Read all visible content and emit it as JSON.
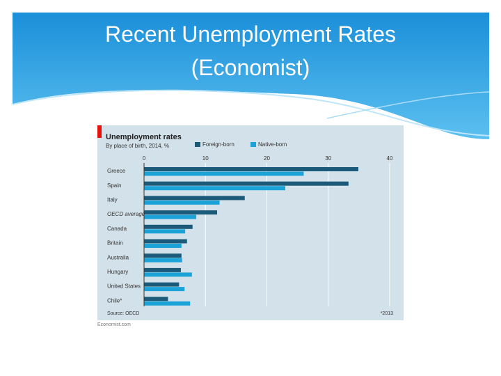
{
  "slide": {
    "title": "Recent Unemployment Rates (Economist)"
  },
  "chart_data": {
    "type": "bar",
    "orientation": "horizontal",
    "title": "Unemployment rates",
    "subtitle": "By place of birth, 2014, %",
    "categories": [
      "Greece",
      "Spain",
      "Italy",
      "OECD average",
      "Canada",
      "Britain",
      "Australia",
      "Hungary",
      "United States",
      "Chile*"
    ],
    "series": [
      {
        "name": "Foreign-born",
        "color": "#1b5b79",
        "values": [
          34.9,
          33.3,
          16.4,
          11.9,
          7.9,
          7.0,
          6.1,
          6.0,
          5.7,
          3.9
        ]
      },
      {
        "name": "Native-born",
        "color": "#1ba3d8",
        "values": [
          26.0,
          23.0,
          12.3,
          8.5,
          6.7,
          6.1,
          6.2,
          7.8,
          6.6,
          7.5
        ]
      }
    ],
    "xlim": [
      0,
      40
    ],
    "xticks": [
      0,
      10,
      20,
      30,
      40
    ],
    "grid": true,
    "source": "Source: OECD",
    "footnote": "*2013",
    "credit": "Economist.com"
  }
}
